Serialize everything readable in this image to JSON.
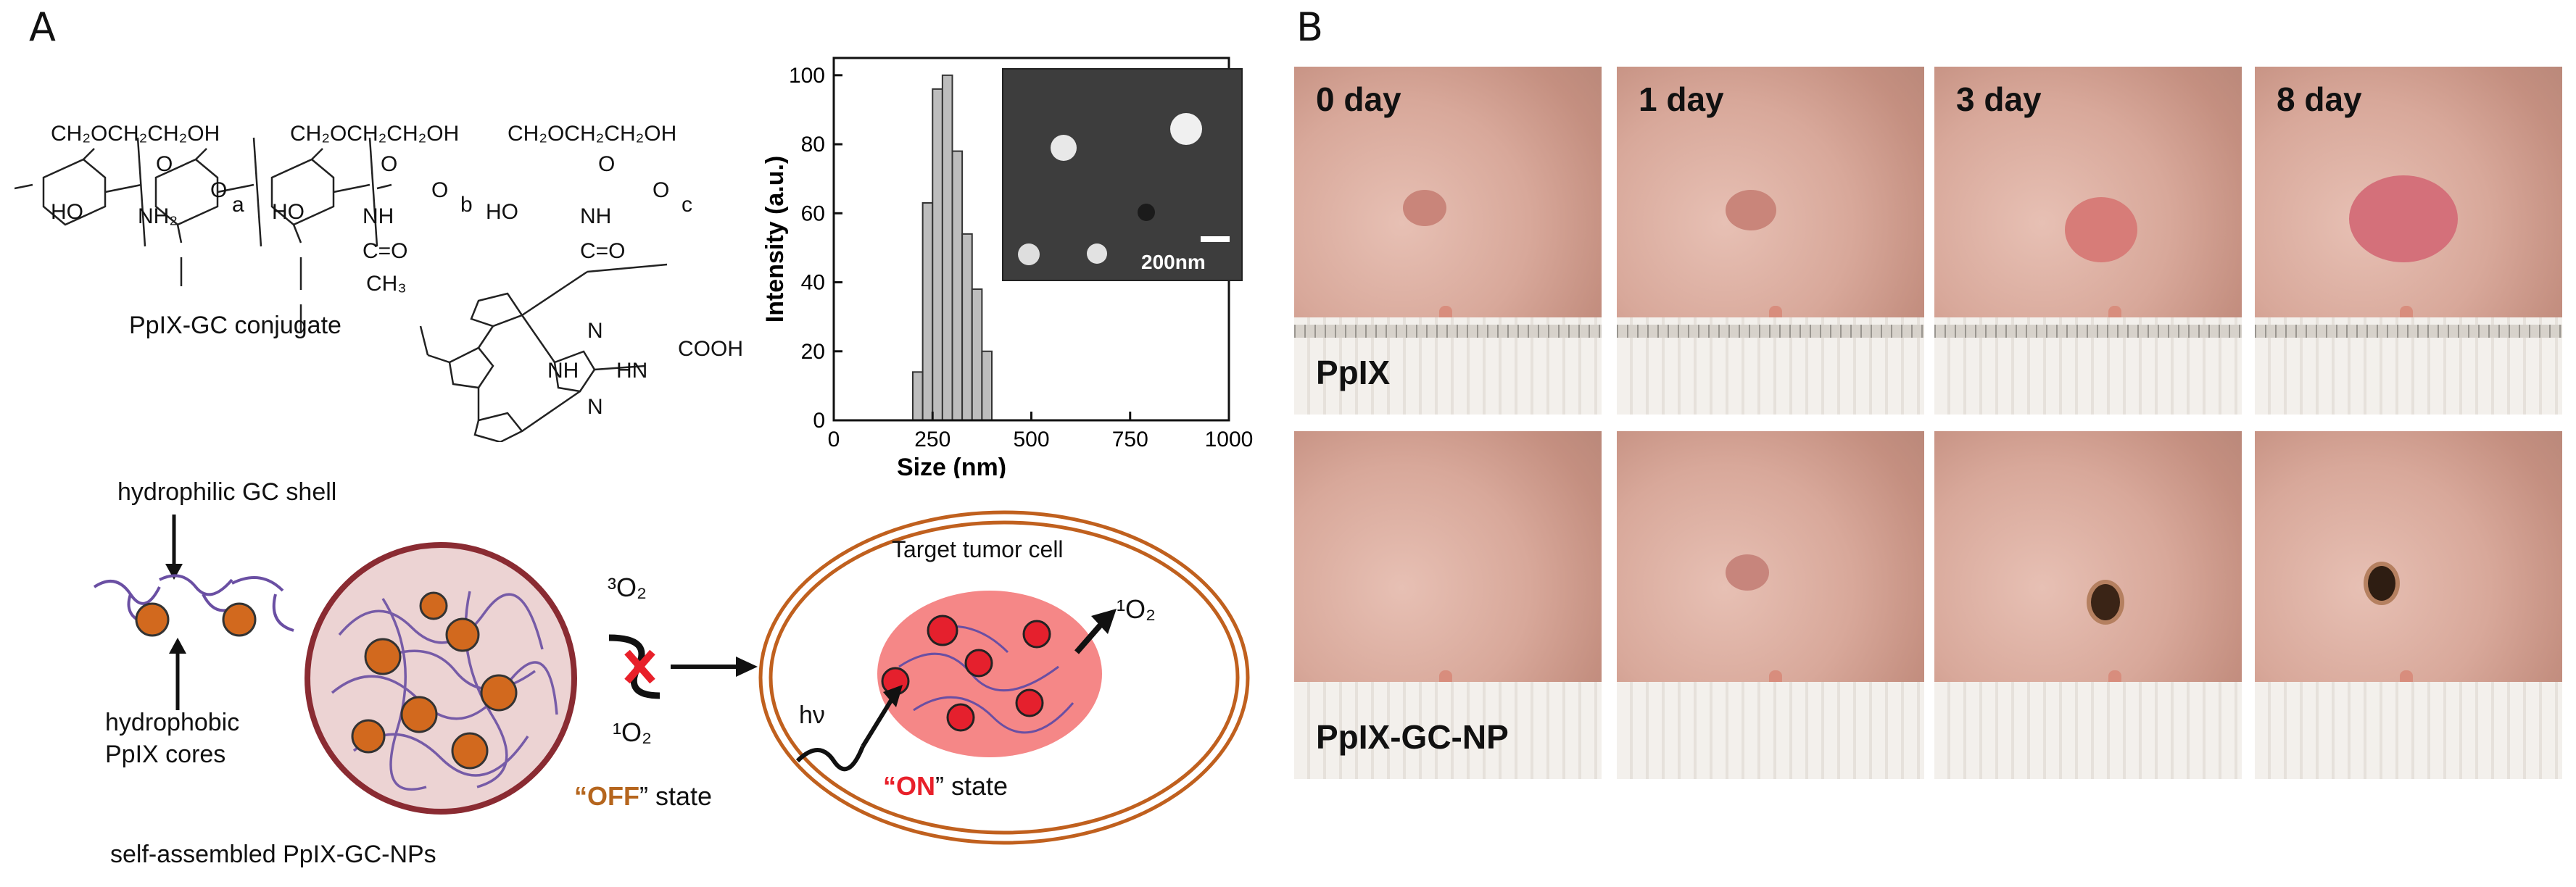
{
  "panel_a": {
    "letter": "A",
    "chem": {
      "sub1": "CH₂OCH₂CH₂OH",
      "sub2": "CH₂OCH₂CH₂OH",
      "sub3": "CH₂OCH₂CH₂OH",
      "ho1": "HO",
      "ho2": "HO",
      "ho3": "HO",
      "nh2": "NH₂",
      "nh_b": "NH",
      "nh_c": "NH",
      "co_b": "C=O",
      "ch3": "CH₃",
      "co_c": "C=O",
      "idx_a": "a",
      "idx_b": "b",
      "idx_c": "c",
      "o1": "O",
      "o2": "O",
      "o3": "O",
      "o4": "O",
      "o5": "O",
      "o6": "O",
      "cooh": "COOH",
      "nh_ring": "NH",
      "hn_ring": "HN",
      "n_top": "N",
      "n_bot": "N",
      "caption": "PpIX-GC conjugate"
    },
    "schematic": {
      "shell_label": "hydrophilic GC shell",
      "core_label_1": "hydrophobic",
      "core_label_2": "PpIX cores",
      "o2_triplet": "³O₂",
      "o2_singlet_left": "¹O₂",
      "off_open": "“",
      "off_word": "OFF",
      "off_close": "” state",
      "cell_title": "Target tumor cell",
      "o2_singlet_right": "¹O₂",
      "hv": "hν",
      "on_open": "“",
      "on_word": "ON",
      "on_close": "”  state",
      "np_caption": "self-assembled PpIX-GC-NPs"
    },
    "inset_scale_label": "200nm"
  },
  "panel_b": {
    "letter": "B",
    "days": [
      "0 day",
      "1 day",
      "3 day",
      "8 day"
    ],
    "rows": [
      "PpIX",
      "PpIX-GC-NP"
    ]
  },
  "colors": {
    "bar_fill": "#bdbdbd",
    "off": "#b5651d",
    "on": "#e8202a",
    "cell_ring": "#c0601e",
    "np_border": "#8a2b32",
    "np_fill": "#ecd3d3",
    "core": "#d2691e",
    "shell": "#6a4fa3",
    "spot": "#e5202d",
    "cell_blob": "#f47a7a"
  },
  "chart_data": {
    "type": "bar",
    "categories": [
      "200",
      "225",
      "250",
      "275",
      "300",
      "325",
      "350",
      "375"
    ],
    "values": [
      14,
      63,
      96,
      100,
      78,
      54,
      38,
      20
    ],
    "title": "",
    "xlabel": "Size (nm)",
    "ylabel": "Intensity (a.u.)",
    "xlim": [
      0,
      1000
    ],
    "ylim": [
      0,
      105
    ],
    "xticks": [
      0,
      250,
      500,
      750,
      1000
    ],
    "yticks": [
      0,
      20,
      40,
      60,
      80,
      100
    ],
    "bin_width": 25,
    "grid": false,
    "legend": "none"
  }
}
